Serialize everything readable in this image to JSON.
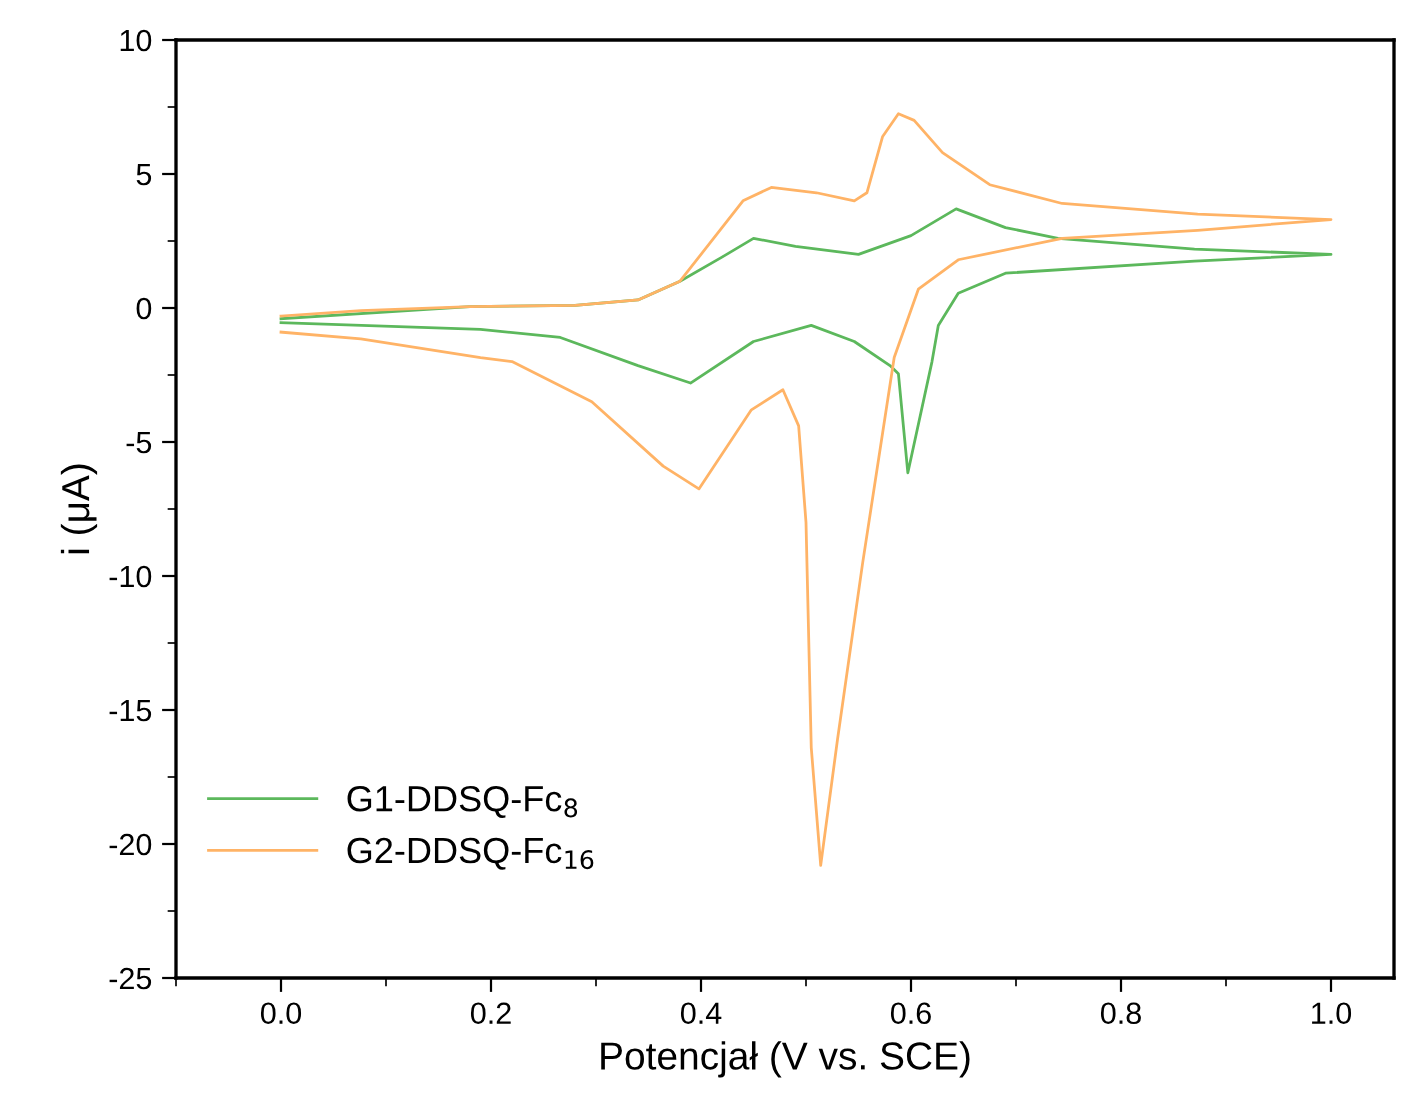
{
  "chart_data": {
    "type": "line",
    "xlabel": "Potencjał (V vs. SCE)",
    "ylabel": "i (μA)",
    "xlim": [
      -0.1,
      1.06
    ],
    "ylim": [
      -25,
      10
    ],
    "xticks": [
      {
        "value": 0,
        "label": "0.0"
      },
      {
        "value": 0.2,
        "label": "0.2"
      },
      {
        "value": 0.4,
        "label": "0.4"
      },
      {
        "value": 0.6,
        "label": "0.6"
      },
      {
        "value": 0.8,
        "label": "0.8"
      },
      {
        "value": 1,
        "label": "1.0"
      }
    ],
    "yticks": [
      -25,
      -20,
      -15,
      -10,
      -5,
      0,
      5,
      10
    ],
    "grid": false,
    "legend": "bottom left",
    "marker": "none",
    "line_style": "solid",
    "series": [
      {
        "name": "G1-DDSQ-Fc$_{8}$",
        "color": "#5cb85c",
        "x": [
          0.0,
          0.18,
          0.28,
          0.34,
          0.38,
          0.42,
          0.45,
          0.49,
          0.55,
          0.6,
          0.643,
          0.69,
          0.74,
          0.87,
          1.0,
          0.87,
          0.69,
          0.645,
          0.626,
          0.62,
          0.597,
          0.588,
          0.58,
          0.546,
          0.505,
          0.45,
          0.39,
          0.34,
          0.266,
          0.19,
          0.0
        ],
        "values": [
          -0.4,
          0.05,
          0.1,
          0.3,
          1.0,
          1.9,
          2.6,
          2.3,
          2.0,
          2.7,
          3.7,
          3.0,
          2.6,
          2.2,
          2.0,
          1.75,
          1.3,
          0.55,
          -0.65,
          -2.0,
          -6.15,
          -2.45,
          -2.15,
          -1.25,
          -0.65,
          -1.25,
          -2.8,
          -2.15,
          -1.1,
          -0.8,
          -0.55
        ]
      },
      {
        "name": "G2-DDSQ-Fc$_{16}$",
        "color": "#ffb366",
        "x": [
          0.0,
          0.076,
          0.18,
          0.28,
          0.34,
          0.38,
          0.42,
          0.44,
          0.467,
          0.51,
          0.546,
          0.558,
          0.573,
          0.588,
          0.603,
          0.63,
          0.675,
          0.744,
          0.873,
          1.0,
          0.873,
          0.744,
          0.645,
          0.607,
          0.584,
          0.554,
          0.53,
          0.514,
          0.505,
          0.5,
          0.493,
          0.478,
          0.448,
          0.398,
          0.364,
          0.296,
          0.22,
          0.19,
          0.076,
          0.0
        ],
        "values": [
          -0.3,
          -0.1,
          0.05,
          0.1,
          0.3,
          1.0,
          3.0,
          4.0,
          4.5,
          4.3,
          4.0,
          4.3,
          6.4,
          7.25,
          7.0,
          5.8,
          4.6,
          3.9,
          3.5,
          3.3,
          2.9,
          2.6,
          1.8,
          0.7,
          -1.85,
          -9.5,
          -16.1,
          -20.8,
          -16.4,
          -8.0,
          -4.4,
          -3.05,
          -3.8,
          -6.75,
          -5.9,
          -3.5,
          -2.0,
          -1.85,
          -1.15,
          -0.9
        ]
      }
    ]
  }
}
